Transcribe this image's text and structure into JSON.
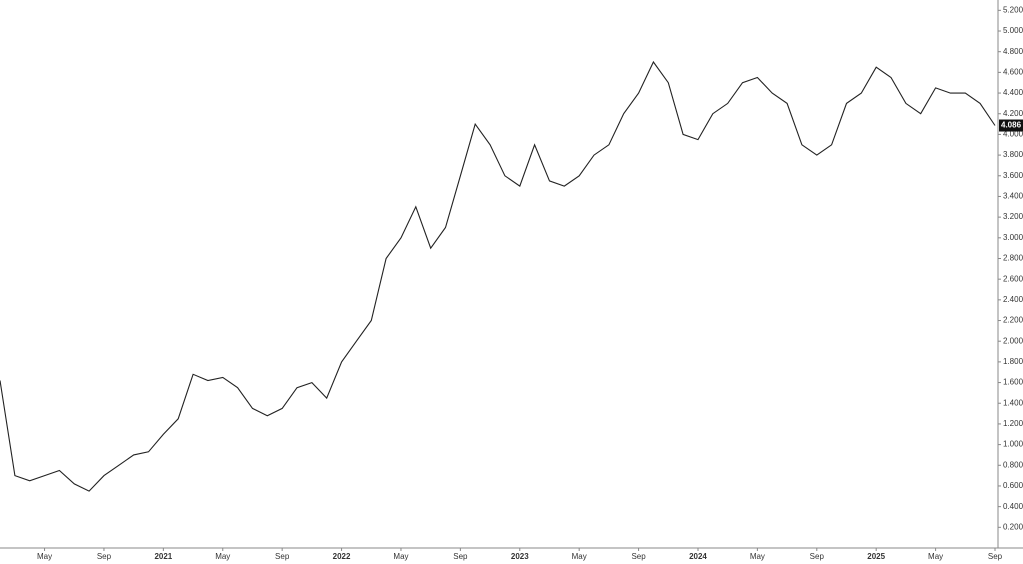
{
  "chart_data": {
    "type": "line",
    "x": [
      "2020-02",
      "2020-03",
      "2020-04",
      "2020-05",
      "2020-06",
      "2020-07",
      "2020-08",
      "2020-09",
      "2020-10",
      "2020-11",
      "2020-12",
      "2021-01",
      "2021-02",
      "2021-03",
      "2021-04",
      "2021-05",
      "2021-06",
      "2021-07",
      "2021-08",
      "2021-09",
      "2021-10",
      "2021-11",
      "2021-12",
      "2022-01",
      "2022-02",
      "2022-03",
      "2022-04",
      "2022-05",
      "2022-06",
      "2022-07",
      "2022-08",
      "2022-09",
      "2022-10",
      "2022-11",
      "2022-12",
      "2023-01",
      "2023-02",
      "2023-03",
      "2023-04",
      "2023-05",
      "2023-06",
      "2023-07",
      "2023-08",
      "2023-09",
      "2023-10",
      "2023-11",
      "2023-12",
      "2024-01",
      "2024-02",
      "2024-03",
      "2024-04",
      "2024-05",
      "2024-06",
      "2024-07",
      "2024-08",
      "2024-09",
      "2024-10",
      "2024-11",
      "2024-12",
      "2025-01",
      "2025-02",
      "2025-03",
      "2025-04",
      "2025-05",
      "2025-06",
      "2025-07",
      "2025-08",
      "2025-09"
    ],
    "series": [
      {
        "color": "#222222",
        "values": [
          1.62,
          0.7,
          0.65,
          0.7,
          0.75,
          0.62,
          0.55,
          0.7,
          0.8,
          0.9,
          0.93,
          1.1,
          1.25,
          1.68,
          1.62,
          1.65,
          1.55,
          1.35,
          1.28,
          1.35,
          1.55,
          1.6,
          1.45,
          1.8,
          2.0,
          2.2,
          2.8,
          3.0,
          3.3,
          2.9,
          3.1,
          3.6,
          4.1,
          3.9,
          3.6,
          3.5,
          3.9,
          3.55,
          3.5,
          3.6,
          3.8,
          3.9,
          4.2,
          4.4,
          4.7,
          4.5,
          4.0,
          3.95,
          4.2,
          4.3,
          4.5,
          4.55,
          4.4,
          4.3,
          3.9,
          3.8,
          3.9,
          4.3,
          4.4,
          4.65,
          4.55,
          4.3,
          4.2,
          4.45,
          4.4,
          4.4,
          4.3,
          4.086
        ]
      }
    ],
    "last_value": 4.086,
    "xlim": [
      "2020-02",
      "2025-09"
    ],
    "xticks": [
      {
        "value": "2020-05",
        "label": "May"
      },
      {
        "value": "2020-09",
        "label": "Sep"
      },
      {
        "value": "2021-01",
        "label": "2021"
      },
      {
        "value": "2021-05",
        "label": "May"
      },
      {
        "value": "2021-09",
        "label": "Sep"
      },
      {
        "value": "2022-01",
        "label": "2022"
      },
      {
        "value": "2022-05",
        "label": "May"
      },
      {
        "value": "2022-09",
        "label": "Sep"
      },
      {
        "value": "2023-01",
        "label": "2023"
      },
      {
        "value": "2023-05",
        "label": "May"
      },
      {
        "value": "2023-09",
        "label": "Sep"
      },
      {
        "value": "2024-01",
        "label": "2024"
      },
      {
        "value": "2024-05",
        "label": "May"
      },
      {
        "value": "2024-09",
        "label": "Sep"
      },
      {
        "value": "2025-01",
        "label": "2025"
      },
      {
        "value": "2025-05",
        "label": "May"
      },
      {
        "value": "2025-09",
        "label": "Sep"
      }
    ],
    "ylim": [
      0,
      5.3
    ],
    "yticks": [
      {
        "value": 0.2,
        "label": "0.200"
      },
      {
        "value": 0.4,
        "label": "0.400"
      },
      {
        "value": 0.6,
        "label": "0.600"
      },
      {
        "value": 0.8,
        "label": "0.800"
      },
      {
        "value": 1.0,
        "label": "1.000"
      },
      {
        "value": 1.2,
        "label": "1.200"
      },
      {
        "value": 1.4,
        "label": "1.400"
      },
      {
        "value": 1.6,
        "label": "1.600"
      },
      {
        "value": 1.8,
        "label": "1.800"
      },
      {
        "value": 2.0,
        "label": "2.000"
      },
      {
        "value": 2.2,
        "label": "2.200"
      },
      {
        "value": 2.4,
        "label": "2.400"
      },
      {
        "value": 2.6,
        "label": "2.600"
      },
      {
        "value": 2.8,
        "label": "2.800"
      },
      {
        "value": 3.0,
        "label": "3.000"
      },
      {
        "value": 3.2,
        "label": "3.200"
      },
      {
        "value": 3.4,
        "label": "3.400"
      },
      {
        "value": 3.6,
        "label": "3.600"
      },
      {
        "value": 3.8,
        "label": "3.800"
      },
      {
        "value": 4.0,
        "label": "4.000"
      },
      {
        "value": 4.2,
        "label": "4.200"
      },
      {
        "value": 4.4,
        "label": "4.400"
      },
      {
        "value": 4.6,
        "label": "4.600"
      },
      {
        "value": 4.8,
        "label": "4.800"
      },
      {
        "value": 5.0,
        "label": "5.000"
      },
      {
        "value": 5.2,
        "label": "5.200"
      }
    ]
  }
}
